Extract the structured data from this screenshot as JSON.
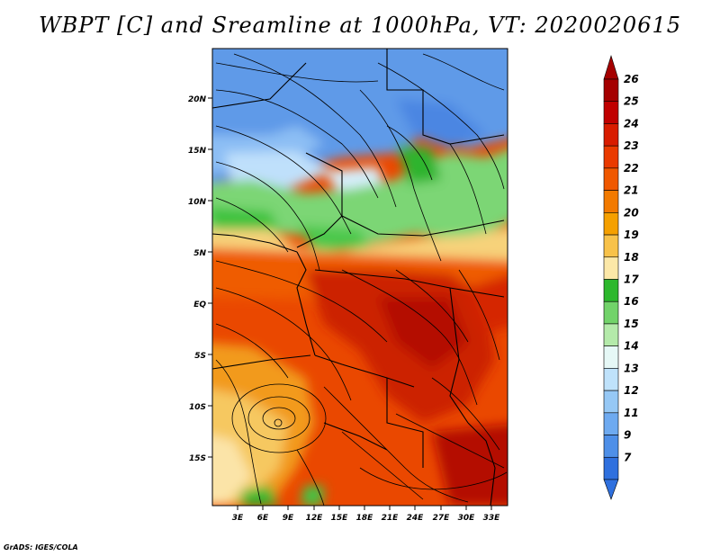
{
  "title": "WBPT [C] and Sreamline at 1000hPa, VT: 2020020615",
  "credit": "GrADS: IGES/COLA",
  "map": {
    "lat_ticks": [
      "20N",
      "15N",
      "10N",
      "5N",
      "EQ",
      "5S",
      "10S",
      "15S"
    ],
    "lon_ticks": [
      "3E",
      "6E",
      "9E",
      "12E",
      "15E",
      "18E",
      "21E",
      "24E",
      "27E",
      "30E",
      "33E"
    ]
  },
  "colorbar": {
    "labels": [
      "26",
      "25",
      "24",
      "23",
      "22",
      "21",
      "20",
      "19",
      "18",
      "17",
      "16",
      "15",
      "14",
      "13",
      "12",
      "11",
      "9",
      "7"
    ],
    "colors": [
      "#a50000",
      "#c00000",
      "#d81c00",
      "#ea3a00",
      "#f05800",
      "#f27a00",
      "#f5a000",
      "#f8c24a",
      "#fce8a8",
      "#2db82d",
      "#72d36a",
      "#b4eaaa",
      "#e6f8f6",
      "#bfe2fb",
      "#96c8f5",
      "#6eaaf0",
      "#4e8fe8",
      "#2f70de"
    ]
  }
}
